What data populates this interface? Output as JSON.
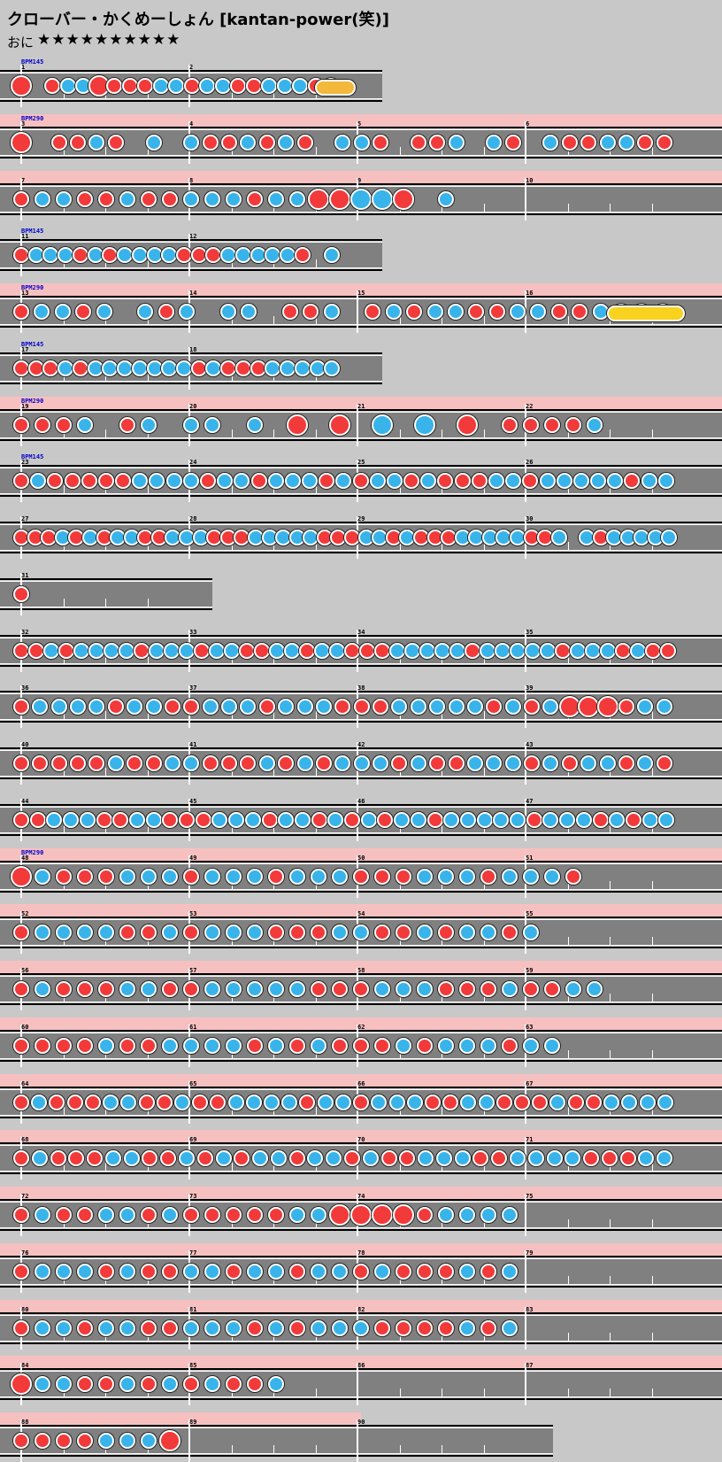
{
  "header": {
    "title": "クローバー・かくめーしょん [kantan-power(笑)]",
    "difficulty": "おに",
    "stars": "★★★★★★★★★★"
  },
  "colors": {
    "don": "#f23a3a",
    "ka": "#38b4ea",
    "roll": "#f8d21e",
    "lane": "#808080",
    "bpm_change_band": "#f7c0c0"
  },
  "rows": [
    {
      "first": 1,
      "count": 2,
      "bpm": "BPM145",
      "slow": true,
      "pink": false
    },
    {
      "first": 3,
      "count": 4,
      "bpm": "BPM290",
      "pink": true
    },
    {
      "first": 7,
      "count": 4,
      "pink": true
    },
    {
      "first": 11,
      "count": 2,
      "bpm": "BPM145",
      "slow": true,
      "pink": false
    },
    {
      "first": 13,
      "count": 4,
      "bpm": "BPM290",
      "pink": true
    },
    {
      "first": 17,
      "count": 2,
      "bpm": "BPM145",
      "slow": true,
      "pink": false
    },
    {
      "first": 19,
      "count": 4,
      "bpm": "BPM290",
      "pink": true
    },
    {
      "first": 23,
      "count": 4,
      "bpm": "BPM145",
      "pink": false
    },
    {
      "first": 27,
      "count": 4,
      "pink": false
    },
    {
      "first": 31,
      "count": 1,
      "pink": false
    },
    {
      "first": 32,
      "count": 4,
      "pink": false
    },
    {
      "first": 36,
      "count": 4,
      "pink": false
    },
    {
      "first": 40,
      "count": 4,
      "pink": false
    },
    {
      "first": 44,
      "count": 4,
      "pink": false
    },
    {
      "first": 48,
      "count": 4,
      "bpm": "BPM290",
      "pink": true
    },
    {
      "first": 52,
      "count": 4,
      "pink": true
    },
    {
      "first": 56,
      "count": 4,
      "pink": true
    },
    {
      "first": 60,
      "count": 4,
      "pink": true
    },
    {
      "first": 64,
      "count": 4,
      "pink": true
    },
    {
      "first": 68,
      "count": 4,
      "pink": true
    },
    {
      "first": 72,
      "count": 4,
      "pink": true
    },
    {
      "first": 76,
      "count": 4,
      "pink": true
    },
    {
      "first": 80,
      "count": 4,
      "pink": true
    },
    {
      "first": 84,
      "count": 4,
      "pink": true
    },
    {
      "first": 88,
      "count": 3,
      "pink": true
    }
  ],
  "measure_labels": [
    "1",
    "2",
    "3",
    "4",
    "5",
    "6",
    "7",
    "8",
    "9",
    "10",
    "11",
    "12",
    "13",
    "14",
    "15",
    "16",
    "17",
    "18",
    "19",
    "20",
    "21",
    "22",
    "23",
    "24",
    "25",
    "26",
    "27",
    "28",
    "29",
    "30",
    "31",
    "32",
    "33",
    "34",
    "35",
    "36",
    "37",
    "38",
    "39",
    "40",
    "41",
    "42",
    "43",
    "44",
    "45",
    "46",
    "47",
    "48",
    "49",
    "50",
    "51",
    "52",
    "53",
    "54",
    "55",
    "56",
    "57",
    "58",
    "59",
    "60",
    "61",
    "62",
    "63",
    "64",
    "65",
    "66",
    "67",
    "68",
    "69",
    "70",
    "71",
    "72",
    "73",
    "74",
    "75",
    "76",
    "77",
    "78",
    "79",
    "80",
    "81",
    "82",
    "83",
    "84",
    "85",
    "86",
    "87",
    "88",
    "89",
    "90"
  ],
  "notes": [
    "Db dkkDbdddkkdkkddkkkdk",
    "Db ddkd k kddkdkd kkd ddk kd kddkkdd",
    "dkkddkddkkkdkkDbDbKbKbDb k",
    "dkkkdkdkkkkdddkkkkkd k",
    "dkkdk kdk kk ddk dkdkkddkkddkkkk",
    "dddkdkkkkkkkdkdddkkkkk",
    "dddk dk kk k Db Db Kb Kb Db ddddk",
    "dkdddddkkkkdkkdkkkdkdkkdkdddkkdkkkkkdkk",
    "dddkdkdkkddkkkdddkkkkkdddkkdkdddkkkkkddk kdkkkkk",
    "d",
    "ddkdkkkkdkkkdkkddkkdkkdddkkkkkdkkkkkdkkkdkdd",
    "dkkkkdkkddkkkdkkkdddkkkkkdkdkDbDbDbdkk",
    "dddddkddkkdddkdkdkkkdkddkkkdkdkkdkd",
    "ddkkkddkkdddkkkdkkdkdkdkkdkkkkkdkkkdkdkk",
    "Dbkdddkkkdkkkdkkkdddkkkdkkkd",
    "dkkkkddkdkkkdddkkddkdkkdk",
    "dkdddkkddkkkkkdddkkkdddkddkk",
    "ddddkddkkkkdkdkdddkdkkkdkk",
    "dkdddkkddkddkkkkdkkdkkkddkkdddkddkkkk",
    "dkdddkkddkdkdkkdkkdkddkkkddkkkkdddkk",
    "dkddkkdkdddddkkDbDbDbDbdkkkk",
    "dkkkdkddkkdkkdkkdkdddkdk",
    "dkkdkkddkkkdkdkkkddddkdk",
    "Dbkkddkdkdkddk",
    "ddddkkkDb"
  ],
  "rolls": [
    "orange drumroll",
    "yellow drumroll"
  ]
}
